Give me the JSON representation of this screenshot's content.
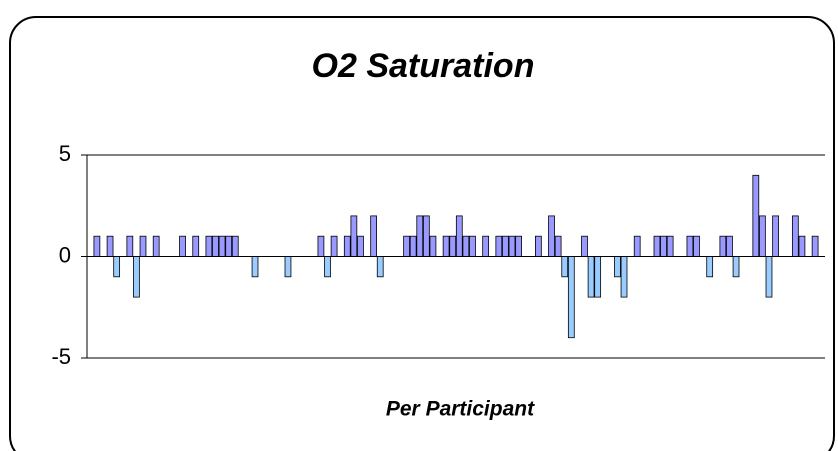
{
  "chart_data": {
    "type": "bar",
    "title": "O2 Saturation",
    "x_label": "Per Participant",
    "values": [
      0,
      1,
      0,
      1,
      -1,
      0,
      1,
      -2,
      1,
      0,
      1,
      0,
      0,
      0,
      1,
      0,
      1,
      0,
      1,
      1,
      1,
      1,
      1,
      0,
      0,
      -1,
      0,
      0,
      0,
      0,
      -1,
      0,
      0,
      0,
      0,
      1,
      -1,
      1,
      0,
      1,
      2,
      1,
      0,
      2,
      -1,
      0,
      0,
      0,
      1,
      1,
      2,
      2,
      1,
      0,
      1,
      1,
      2,
      1,
      1,
      0,
      1,
      0,
      1,
      1,
      1,
      1,
      0,
      0,
      1,
      0,
      2,
      1,
      -1,
      -4,
      0,
      1,
      -2,
      -2,
      0,
      0,
      -1,
      -2,
      0,
      1,
      0,
      0,
      1,
      1,
      1,
      0,
      0,
      1,
      1,
      0,
      -1,
      0,
      1,
      1,
      -1,
      0,
      0,
      4,
      2,
      -2,
      2,
      0,
      0,
      2,
      1,
      0,
      1,
      0
    ],
    "color": "#9999ff",
    "negative_color": "#99ccff",
    "ylim": [
      -5,
      5
    ],
    "yticks": [
      -5,
      0,
      5
    ],
    "grid": true
  }
}
